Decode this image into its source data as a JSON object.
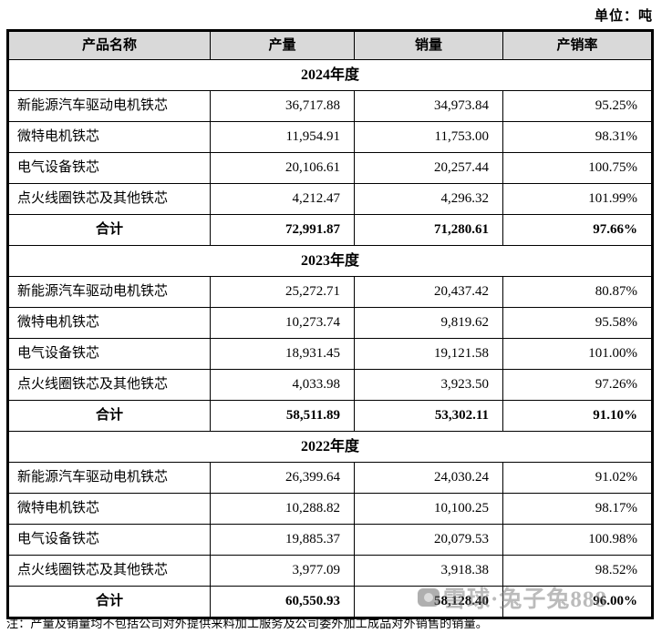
{
  "unit_label": "单位：吨",
  "table": {
    "columns": [
      "产品名称",
      "产量",
      "销量",
      "产销率"
    ],
    "sections": [
      {
        "year": "2024年度",
        "rows": [
          {
            "name": "新能源汽车驱动电机铁芯",
            "production": "36,717.88",
            "sales": "34,973.84",
            "ratio": "95.25%"
          },
          {
            "name": "微特电机铁芯",
            "production": "11,954.91",
            "sales": "11,753.00",
            "ratio": "98.31%"
          },
          {
            "name": "电气设备铁芯",
            "production": "20,106.61",
            "sales": "20,257.44",
            "ratio": "100.75%"
          },
          {
            "name": "点火线圈铁芯及其他铁芯",
            "production": "4,212.47",
            "sales": "4,296.32",
            "ratio": "101.99%"
          }
        ],
        "total": {
          "name": "合计",
          "production": "72,991.87",
          "sales": "71,280.61",
          "ratio": "97.66%"
        }
      },
      {
        "year": "2023年度",
        "rows": [
          {
            "name": "新能源汽车驱动电机铁芯",
            "production": "25,272.71",
            "sales": "20,437.42",
            "ratio": "80.87%"
          },
          {
            "name": "微特电机铁芯",
            "production": "10,273.74",
            "sales": "9,819.62",
            "ratio": "95.58%"
          },
          {
            "name": "电气设备铁芯",
            "production": "18,931.45",
            "sales": "19,121.58",
            "ratio": "101.00%"
          },
          {
            "name": "点火线圈铁芯及其他铁芯",
            "production": "4,033.98",
            "sales": "3,923.50",
            "ratio": "97.26%"
          }
        ],
        "total": {
          "name": "合计",
          "production": "58,511.89",
          "sales": "53,302.11",
          "ratio": "91.10%"
        }
      },
      {
        "year": "2022年度",
        "rows": [
          {
            "name": "新能源汽车驱动电机铁芯",
            "production": "26,399.64",
            "sales": "24,030.24",
            "ratio": "91.02%"
          },
          {
            "name": "微特电机铁芯",
            "production": "10,288.82",
            "sales": "10,100.25",
            "ratio": "98.17%"
          },
          {
            "name": "电气设备铁芯",
            "production": "19,885.37",
            "sales": "20,079.53",
            "ratio": "100.98%"
          },
          {
            "name": "点火线圈铁芯及其他铁芯",
            "production": "3,977.09",
            "sales": "3,918.38",
            "ratio": "98.52%"
          }
        ],
        "total": {
          "name": "合计",
          "production": "60,550.93",
          "sales": "58,128.40",
          "ratio": "96.00%"
        }
      }
    ]
  },
  "footnote": "注：产量及销量均不包括公司对外提供来料加工服务及公司委外加工成品对外销售的销量。",
  "watermark": "雪球·兔子兔888",
  "colors": {
    "header_bg": "#d9d9d9",
    "border": "#000000",
    "watermark_gray": "#7d7d7d"
  }
}
